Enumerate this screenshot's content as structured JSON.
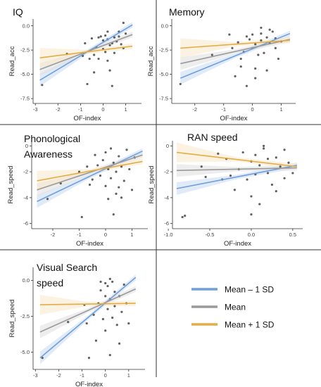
{
  "colors": {
    "mean_minus_1sd": "#6f9fde",
    "mean": "#9a9a9a",
    "mean_plus_1sd": "#e5ac45",
    "band_minus": "#c9daf2",
    "band_mean": "#dedede",
    "band_plus": "#f8e8c8",
    "points": "#444444",
    "divider": "#333333"
  },
  "legend": [
    {
      "key": "minus",
      "label": "Mean – 1 SD"
    },
    {
      "key": "mean",
      "label": "Mean"
    },
    {
      "key": "plus",
      "label": "Mean + 1 SD"
    }
  ],
  "chart_data": [
    {
      "type": "scatter",
      "title_lines": [
        "IQ"
      ],
      "xlabel": "OF-index",
      "ylabel": "Read_acc",
      "xlim": [
        -3.1,
        1.7
      ],
      "ylim": [
        -8.0,
        0.7
      ],
      "xticks": [
        -3,
        -2,
        -1,
        0,
        1
      ],
      "yticks": [
        0.0,
        -2.5,
        -5.0,
        -7.5
      ],
      "ytick_labels": [
        "0.0",
        "-2.5",
        "-5.0",
        "-7.5"
      ],
      "series": [
        {
          "name": "Mean – 1 SD",
          "key": "minus",
          "x": [
            -2.8,
            1.3
          ],
          "y": [
            -5.6,
            0.1
          ]
        },
        {
          "name": "Mean",
          "key": "mean",
          "x": [
            -2.8,
            1.3
          ],
          "y": [
            -4.5,
            -0.9
          ]
        },
        {
          "name": "Mean + 1 SD",
          "key": "plus",
          "x": [
            -2.8,
            1.3
          ],
          "y": [
            -3.3,
            -2.1
          ]
        }
      ],
      "points": [
        [
          -2.7,
          -6.1
        ],
        [
          -1.6,
          -2.9
        ],
        [
          -0.9,
          -3.1
        ],
        [
          -0.8,
          -1.8
        ],
        [
          -0.7,
          -6.0
        ],
        [
          -0.6,
          -3.4
        ],
        [
          -0.4,
          -3.0
        ],
        [
          -0.3,
          -2.2
        ],
        [
          -0.2,
          -1.2
        ],
        [
          -0.1,
          -1.1
        ],
        [
          0.0,
          -1.5
        ],
        [
          0.0,
          -2.4
        ],
        [
          0.1,
          -2.7
        ],
        [
          0.1,
          -1.0
        ],
        [
          0.2,
          -1.4
        ],
        [
          0.2,
          -3.6
        ],
        [
          0.3,
          -2.0
        ],
        [
          0.3,
          -4.6
        ],
        [
          0.4,
          -1.8
        ],
        [
          0.5,
          -1.2
        ],
        [
          0.5,
          -2.8
        ],
        [
          0.6,
          -1.6
        ],
        [
          0.7,
          -1.1
        ],
        [
          0.7,
          -0.6
        ],
        [
          0.8,
          -1.9
        ],
        [
          0.9,
          -2.3
        ],
        [
          1.0,
          -0.8
        ],
        [
          0.4,
          -6.2
        ],
        [
          -0.5,
          -1.3
        ],
        [
          0.2,
          -0.6
        ],
        [
          0.9,
          0.3
        ],
        [
          -0.2,
          -3.4
        ],
        [
          -0.4,
          -4.8
        ]
      ]
    },
    {
      "type": "scatter",
      "title_lines": [
        "Memory"
      ],
      "xlabel": "OF-index",
      "ylabel": "Read_acc",
      "xlim": [
        -2.8,
        1.5
      ],
      "ylim": [
        -8.0,
        0.7
      ],
      "xticks": [
        -2,
        -1,
        0,
        1
      ],
      "yticks": [
        0.0,
        -2.5,
        -5.0,
        -7.5
      ],
      "ytick_labels": [
        "0.0",
        "-2.5",
        "-5.0",
        "-7.5"
      ],
      "series": [
        {
          "name": "Mean – 1 SD",
          "key": "minus",
          "x": [
            -2.5,
            1.3
          ],
          "y": [
            -5.4,
            -0.8
          ]
        },
        {
          "name": "Mean",
          "key": "mean",
          "x": [
            -2.5,
            1.3
          ],
          "y": [
            -3.9,
            -1.4
          ]
        },
        {
          "name": "Mean + 1 SD",
          "key": "plus",
          "x": [
            -2.5,
            1.3
          ],
          "y": [
            -2.3,
            -1.5
          ]
        }
      ],
      "points": [
        [
          -2.5,
          -6.0
        ],
        [
          -1.4,
          -3.0
        ],
        [
          -0.7,
          -2.3
        ],
        [
          -0.6,
          -5.2
        ],
        [
          -0.5,
          -1.7
        ],
        [
          -0.4,
          -3.4
        ],
        [
          -0.3,
          -2.7
        ],
        [
          -0.2,
          -1.1
        ],
        [
          -0.1,
          -1.4
        ],
        [
          0.0,
          -2.3
        ],
        [
          0.0,
          -0.9
        ],
        [
          0.1,
          -1.9
        ],
        [
          0.1,
          -4.4
        ],
        [
          0.2,
          -3.0
        ],
        [
          0.3,
          -1.5
        ],
        [
          0.3,
          -0.8
        ],
        [
          0.4,
          -2.8
        ],
        [
          0.5,
          -1.2
        ],
        [
          0.5,
          -4.6
        ],
        [
          0.6,
          -1.8
        ],
        [
          0.7,
          -0.6
        ],
        [
          0.8,
          -2.3
        ],
        [
          0.8,
          -1.3
        ],
        [
          0.9,
          -3.4
        ],
        [
          1.0,
          -1.6
        ],
        [
          -0.2,
          -6.2
        ],
        [
          -0.8,
          -0.9
        ],
        [
          0.3,
          -0.2
        ],
        [
          0.6,
          -0.4
        ],
        [
          0.1,
          -5.4
        ],
        [
          -0.4,
          -4.2
        ]
      ]
    },
    {
      "type": "scatter",
      "title_lines": [
        "Phonological",
        "Awareness"
      ],
      "xlabel": "OF-index",
      "ylabel": "Read_speed",
      "xlim": [
        -2.8,
        1.6
      ],
      "ylim": [
        -6.4,
        0.4
      ],
      "xticks": [
        -2,
        -1,
        0,
        1
      ],
      "yticks": [
        0,
        -2,
        -4,
        -6
      ],
      "ytick_labels": [
        "0",
        "-2",
        "-4",
        "-6"
      ],
      "series": [
        {
          "name": "Mean – 1 SD",
          "key": "minus",
          "x": [
            -2.6,
            1.4
          ],
          "y": [
            -4.3,
            -0.4
          ]
        },
        {
          "name": "Mean",
          "key": "mean",
          "x": [
            -2.6,
            1.4
          ],
          "y": [
            -3.4,
            -0.7
          ]
        },
        {
          "name": "Mean + 1 SD",
          "key": "plus",
          "x": [
            -2.6,
            1.4
          ],
          "y": [
            -2.7,
            -1.2
          ]
        }
      ],
      "points": [
        [
          -2.2,
          -4.1
        ],
        [
          -1.7,
          -2.9
        ],
        [
          -1.0,
          -2.0
        ],
        [
          -0.9,
          -5.5
        ],
        [
          -0.7,
          -1.6
        ],
        [
          -0.6,
          -3.0
        ],
        [
          -0.4,
          -0.7
        ],
        [
          -0.3,
          -1.5
        ],
        [
          -0.2,
          -2.3
        ],
        [
          -0.1,
          -1.1
        ],
        [
          0.0,
          -3.1
        ],
        [
          0.0,
          -0.5
        ],
        [
          0.1,
          -1.8
        ],
        [
          0.1,
          -4.1
        ],
        [
          0.2,
          -2.5
        ],
        [
          0.3,
          -1.3
        ],
        [
          0.3,
          -5.3
        ],
        [
          0.4,
          -2.0
        ],
        [
          0.5,
          -0.8
        ],
        [
          0.5,
          -3.2
        ],
        [
          0.6,
          -1.6
        ],
        [
          0.7,
          -2.7
        ],
        [
          0.8,
          -0.3
        ],
        [
          0.9,
          -1.8
        ],
        [
          1.0,
          -3.4
        ],
        [
          1.1,
          -0.9
        ],
        [
          0.2,
          -0.2
        ],
        [
          -0.5,
          -2.6
        ],
        [
          0.6,
          -4.0
        ],
        [
          0.4,
          -3.7
        ]
      ]
    },
    {
      "type": "scatter",
      "title_lines": [
        "RAN speed"
      ],
      "xlabel": "OF-index",
      "ylabel": "Read_speed",
      "xlim": [
        -0.95,
        0.62
      ],
      "ylim": [
        -6.4,
        0.4
      ],
      "xticks": [
        -1.0,
        -0.5,
        0.0,
        0.5
      ],
      "xtick_labels": [
        "-1.0",
        "-0.5",
        "0.0",
        "0.5"
      ],
      "yticks": [
        0,
        -2,
        -4,
        -6
      ],
      "ytick_labels": [
        "0",
        "-2",
        "-4",
        "-6"
      ],
      "series": [
        {
          "name": "Mean – 1 SD",
          "key": "minus",
          "x": [
            -0.9,
            0.55
          ],
          "y": [
            -3.3,
            -1.5
          ]
        },
        {
          "name": "Mean",
          "key": "mean",
          "x": [
            -0.9,
            0.55
          ],
          "y": [
            -1.9,
            -1.7
          ]
        },
        {
          "name": "Mean + 1 SD",
          "key": "plus",
          "x": [
            -0.9,
            0.55
          ],
          "y": [
            -0.5,
            -1.6
          ]
        }
      ],
      "points": [
        [
          -0.83,
          -5.5
        ],
        [
          -0.8,
          -5.4
        ],
        [
          -0.6,
          -1.6
        ],
        [
          -0.55,
          -2.4
        ],
        [
          -0.4,
          -0.6
        ],
        [
          -0.3,
          -1.0
        ],
        [
          -0.25,
          -2.3
        ],
        [
          -0.2,
          -3.4
        ],
        [
          -0.15,
          -1.8
        ],
        [
          -0.1,
          -0.5
        ],
        [
          -0.05,
          -2.6
        ],
        [
          0.0,
          -1.2
        ],
        [
          0.0,
          -3.9
        ],
        [
          0.05,
          -0.7
        ],
        [
          0.05,
          -2.2
        ],
        [
          0.1,
          -1.5
        ],
        [
          0.1,
          -4.5
        ],
        [
          0.15,
          -0.2
        ],
        [
          0.2,
          -2.1
        ],
        [
          0.2,
          -1.0
        ],
        [
          0.25,
          -3.0
        ],
        [
          0.3,
          -0.9
        ],
        [
          0.35,
          -1.6
        ],
        [
          0.4,
          -2.5
        ],
        [
          0.4,
          -0.3
        ],
        [
          0.45,
          -1.3
        ],
        [
          0.5,
          -2.1
        ],
        [
          0.0,
          -5.3
        ],
        [
          -0.35,
          -2.6
        ],
        [
          0.3,
          -3.5
        ],
        [
          0.15,
          0.0
        ]
      ]
    },
    {
      "type": "scatter",
      "title_lines": [
        "Visual Search",
        "speed"
      ],
      "xlabel": "OF-index",
      "ylabel": "Read_speed",
      "xlim": [
        -3.1,
        1.7
      ],
      "ylim": [
        -6.2,
        0.9
      ],
      "xticks": [
        -3,
        -2,
        -1,
        0,
        1
      ],
      "yticks": [
        0.0,
        -2.5,
        -5.0
      ],
      "ytick_labels": [
        "0.0",
        "-2.5",
        "-5.0"
      ],
      "series": [
        {
          "name": "Mean – 1 SD",
          "key": "minus",
          "x": [
            -2.8,
            1.3
          ],
          "y": [
            -5.4,
            0.2
          ]
        },
        {
          "name": "Mean",
          "key": "mean",
          "x": [
            -2.8,
            1.3
          ],
          "y": [
            -3.6,
            -0.6
          ]
        },
        {
          "name": "Mean + 1 SD",
          "key": "plus",
          "x": [
            -2.8,
            1.3
          ],
          "y": [
            -1.7,
            -1.6
          ]
        }
      ],
      "points": [
        [
          -2.7,
          -5.4
        ],
        [
          -1.6,
          -2.9
        ],
        [
          -0.9,
          -1.7
        ],
        [
          -0.8,
          -3.0
        ],
        [
          -0.7,
          -5.4
        ],
        [
          -0.5,
          -2.4
        ],
        [
          -0.3,
          -1.6
        ],
        [
          -0.2,
          -0.7
        ],
        [
          -0.1,
          -2.7
        ],
        [
          0.0,
          -1.1
        ],
        [
          0.0,
          -3.5
        ],
        [
          0.1,
          -0.4
        ],
        [
          0.1,
          -2.0
        ],
        [
          0.2,
          -1.3
        ],
        [
          0.2,
          -5.2
        ],
        [
          0.3,
          -2.6
        ],
        [
          0.4,
          -0.8
        ],
        [
          0.4,
          -1.8
        ],
        [
          0.5,
          -3.1
        ],
        [
          0.6,
          -1.1
        ],
        [
          0.7,
          -2.2
        ],
        [
          0.8,
          -0.3
        ],
        [
          0.9,
          -1.6
        ],
        [
          1.0,
          -3.0
        ],
        [
          0.3,
          -0.1
        ],
        [
          -0.4,
          -4.2
        ],
        [
          0.6,
          -4.4
        ],
        [
          0.0,
          -0.2
        ],
        [
          -0.2,
          -0.1
        ],
        [
          0.2,
          0.1
        ]
      ]
    }
  ]
}
